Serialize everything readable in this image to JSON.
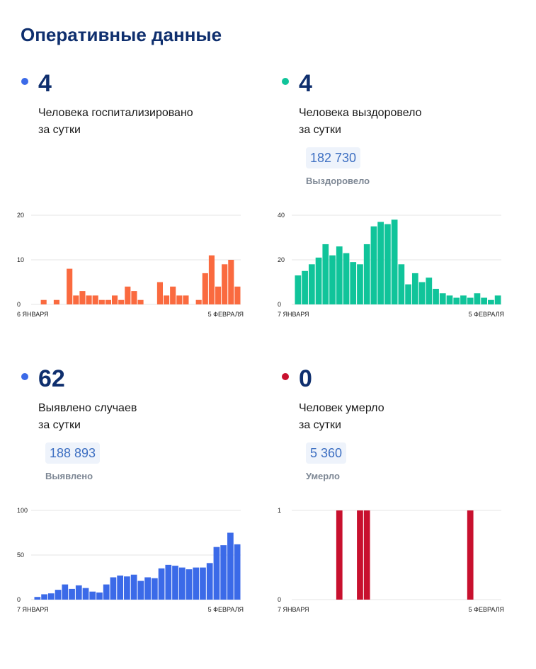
{
  "page": {
    "title": "Оперативные данные"
  },
  "cards": [
    {
      "value": "4",
      "desc_line1": "Человека госпитализировано",
      "desc_line2": "за сутки",
      "dot_color": "#3b6ae8"
    },
    {
      "value": "4",
      "desc_line1": "Человека выздоровело",
      "desc_line2": "за сутки",
      "total": "182 730",
      "total_label": "Выздоровело",
      "dot_color": "#10c49a"
    },
    {
      "value": "62",
      "desc_line1": "Выявлено случаев",
      "desc_line2": "за сутки",
      "total": "188 893",
      "total_label": "Выявлено",
      "dot_color": "#3b6ae8"
    },
    {
      "value": "0",
      "desc_line1": "Человек умерло",
      "desc_line2": "за сутки",
      "total": "5 360",
      "total_label": "Умерло",
      "dot_color": "#c8102e"
    }
  ],
  "chart_data": [
    {
      "type": "bar",
      "title": "Человека госпитализировано за сутки",
      "color": "#fa6a3f",
      "ylim": [
        0,
        20
      ],
      "yticks": [
        0,
        10,
        20
      ],
      "x_start_label": "6 ЯНВАРЯ",
      "x_end_label": "5 ФЕВРАЛЯ",
      "values": [
        0,
        1,
        0,
        1,
        0,
        8,
        2,
        3,
        2,
        2,
        1,
        1,
        2,
        1,
        4,
        3,
        1,
        0,
        0,
        5,
        2,
        4,
        2,
        2,
        0,
        1,
        7,
        11,
        4,
        9,
        10,
        4
      ]
    },
    {
      "type": "bar",
      "title": "Человека выздоровело за сутки",
      "color": "#10c49a",
      "ylim": [
        0,
        40
      ],
      "yticks": [
        0,
        20,
        40
      ],
      "x_start_label": "7 ЯНВАРЯ",
      "x_end_label": "5 ФЕВРАЛЯ",
      "values": [
        13,
        15,
        18,
        21,
        27,
        22,
        26,
        23,
        19,
        18,
        27,
        35,
        37,
        36,
        38,
        18,
        9,
        14,
        10,
        12,
        7,
        5,
        4,
        3,
        4,
        3,
        5,
        3,
        2,
        4
      ]
    },
    {
      "type": "bar",
      "title": "Выявлено случаев за сутки",
      "color": "#3b6ae8",
      "ylim": [
        0,
        100
      ],
      "yticks": [
        0,
        50,
        100
      ],
      "x_start_label": "7 ЯНВАРЯ",
      "x_end_label": "5 ФЕВРАЛЯ",
      "values": [
        3,
        6,
        7,
        11,
        17,
        12,
        16,
        13,
        9,
        8,
        17,
        25,
        27,
        26,
        28,
        21,
        25,
        24,
        35,
        39,
        38,
        36,
        34,
        36,
        36,
        41,
        59,
        61,
        75,
        62
      ]
    },
    {
      "type": "bar",
      "title": "Человек умерло за сутки",
      "color": "#c8102e",
      "ylim": [
        0,
        1
      ],
      "yticks": [
        0,
        1
      ],
      "x_start_label": "7 ЯНВАРЯ",
      "x_end_label": "5 ФЕВРАЛЯ",
      "values": [
        0,
        0,
        0,
        0,
        0,
        0,
        1,
        0,
        0,
        1,
        1,
        0,
        0,
        0,
        0,
        0,
        0,
        0,
        0,
        0,
        0,
        0,
        0,
        0,
        0,
        1,
        0,
        0,
        0,
        0
      ]
    }
  ]
}
